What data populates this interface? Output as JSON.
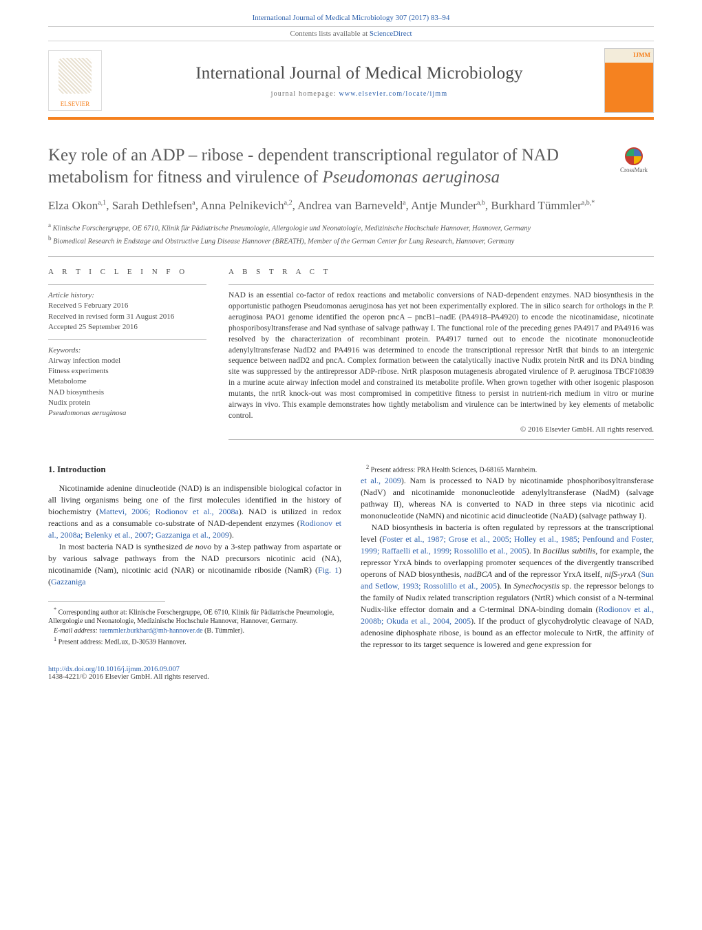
{
  "header": {
    "citation_link": "International Journal of Medical Microbiology 307 (2017) 83–94",
    "contents_prefix": "Contents lists available at ",
    "contents_link": "ScienceDirect",
    "journal_name": "International Journal of Medical Microbiology",
    "homepage_prefix": "journal homepage: ",
    "homepage_url": "www.elsevier.com/locate/ijmm",
    "publisher": "ELSEVIER",
    "cover_abbrev": "IJMM"
  },
  "crossmark": "CrossMark",
  "title": "Key role of an ADP – ribose - dependent transcriptional regulator of NAD metabolism for fitness and virulence of ",
  "title_italic": "Pseudomonas aeruginosa",
  "authors_html": "Elza Okon<sup>a,1</sup>, Sarah Dethlefsen<sup>a</sup>, Anna Pelnikevich<sup>a,2</sup>, Andrea van Barneveld<sup>a</sup>, Antje Munder<sup>a,b</sup>, Burkhard Tümmler<sup>a,b,*</sup>",
  "affiliations": [
    "a Klinische Forschergruppe, OE 6710, Klinik für Pädiatrische Pneumologie, Allergologie und Neonatologie, Medizinische Hochschule Hannover, Hannover, Germany",
    "b Biomedical Research in Endstage and Obstructive Lung Disease Hannover (BREATH), Member of the German Center for Lung Research, Hannover, Germany"
  ],
  "article_info": {
    "heading": "A R T I C L E  I N F O",
    "history_label": "Article history:",
    "history": [
      "Received 5 February 2016",
      "Received in revised form 31 August 2016",
      "Accepted 25 September 2016"
    ],
    "keywords_label": "Keywords:",
    "keywords": [
      "Airway infection model",
      "Fitness experiments",
      "Metabolome",
      "NAD biosynthesis",
      "Nudix protein",
      "Pseudomonas aeruginosa"
    ]
  },
  "abstract": {
    "heading": "A B S T R A C T",
    "body": "NAD is an essential co-factor of redox reactions and metabolic conversions of NAD-dependent enzymes. NAD biosynthesis in the opportunistic pathogen Pseudomonas aeruginosa has yet not been experimentally explored. The in silico search for orthologs in the P. aeruginosa PAO1 genome identified the operon pncA – pncB1–nadE (PA4918–PA4920) to encode the nicotinamidase, nicotinate phosporibosyltransferase and Nad synthase of salvage pathway I. The functional role of the preceding genes PA4917 and PA4916 was resolved by the characterization of recombinant protein. PA4917 turned out to encode the nicotinate mononucleotide adenylyltransferase NadD2 and PA4916 was determined to encode the transcriptional repressor NrtR that binds to an intergenic sequence between nadD2 and pncA. Complex formation between the catalytically inactive Nudix protein NrtR and its DNA binding site was suppressed by the antirepressor ADP-ribose. NrtR plasposon mutagenesis abrogated virulence of P. aeruginosa TBCF10839 in a murine acute airway infection model and constrained its metabolite profile. When grown together with other isogenic plasposon mutants, the nrtR knock-out was most compromised in competitive fitness to persist in nutrient-rich medium in vitro or murine airways in vivo. This example demonstrates how tightly metabolism and virulence can be intertwined by key elements of metabolic control.",
    "copyright": "© 2016 Elsevier GmbH. All rights reserved."
  },
  "intro_heading": "1. Introduction",
  "paragraphs": {
    "p1a": "Nicotinamide adenine dinucleotide (NAD) is an indispensible biological cofactor in all living organisms being one of the first molecules identified in the history of biochemistry (",
    "p1_link1": "Mattevi, 2006; Rodionov et al., 2008a",
    "p1b": "). NAD is utilized in redox reactions and as a consumable co-substrate of NAD-dependent enzymes (",
    "p1_link2": "Rodionov et al., 2008a; Belenky et al., 2007; Gazzaniga et al., 2009",
    "p1c": ").",
    "p2a": "In most bacteria NAD is synthesized ",
    "p2_it1": "de novo",
    "p2b": " by a 3-step pathway from aspartate or by various salvage pathways from the NAD precursors nicotinic acid (NA), nicotinamide (Nam), nicotinic acid (NAR) or nicotinamide riboside (NamR) (",
    "p2_link1": "Fig. 1",
    "p2c": ") (",
    "p2_link2": "Gazzaniga",
    "p3_link_cont": "et al., 2009",
    "p3a": "). Nam is processed to NAD by nicotinamide phosphoribosyltransferase (NadV) and nicotinamide mononucleotide adenylyltransferase (NadM) (salvage pathway II), whereas NA is converted to NAD in three steps via nicotinic acid mononucleotide (NaMN) and nicotinic acid dinucleotide (NaAD) (salvage pathway I).",
    "p4a": "NAD biosynthesis in bacteria is often regulated by repressors at the transcriptional level (",
    "p4_link1": "Foster et al., 1987; Grose et al., 2005; Holley et al., 1985; Penfound and Foster, 1999; Raffaelli et al., 1999; Rossolillo et al., 2005",
    "p4b": "). In ",
    "p4_it1": "Bacillus subtilis",
    "p4c": ", for example, the repressor YrxA binds to overlapping promoter sequences of the divergently transcribed operons of NAD biosynthesis, ",
    "p4_it2": "nadBCA",
    "p4d": " and of the repressor YrxA itself, ",
    "p4_it3": "nifS-yrxA",
    "p4e": " (",
    "p4_link2": "Sun and Setlow, 1993; Rossolillo et al., 2005",
    "p4f": "). In ",
    "p4_it4": "Synechocystis",
    "p4g": " sp. the repressor belongs to the family of Nudix related transcription regulators (NrtR) which consist of a N-terminal Nudix-like effector domain and a C-terminal DNA-binding domain (",
    "p4_link3": "Rodionov et al., 2008b; Okuda et al., 2004, 2005",
    "p4h": "). If the product of glycohydrolytic cleavage of NAD, adenosine diphosphate ribose, is bound as an effector molecule to NrtR, the affinity of the repressor to its target sequence is lowered and gene expression for"
  },
  "footnotes": {
    "corr_star": "*",
    "corr": "Corresponding author at: Klinische Forschergruppe, OE 6710, Klinik für Pädiatrische Pneumologie, Allergologie und Neonatologie, Medizinische Hochschule Hannover, Hannover, Germany.",
    "email_label": "E-mail address: ",
    "email": "tuemmler.burkhard@mh-hannover.de",
    "email_who": " (B. Tümmler).",
    "n1": "Present address: MedLux, D-30539 Hannover.",
    "n2": "Present address: PRA Health Sciences, D-68165 Mannheim."
  },
  "footer": {
    "doi": "http://dx.doi.org/10.1016/j.ijmm.2016.09.007",
    "issn": "1438-4221/© 2016 Elsevier GmbH. All rights reserved."
  },
  "colors": {
    "accent_orange": "#f58220",
    "link_blue": "#2b5fab",
    "text_gray": "#5a5a5a",
    "rule_gray": "#bcbcbc"
  }
}
